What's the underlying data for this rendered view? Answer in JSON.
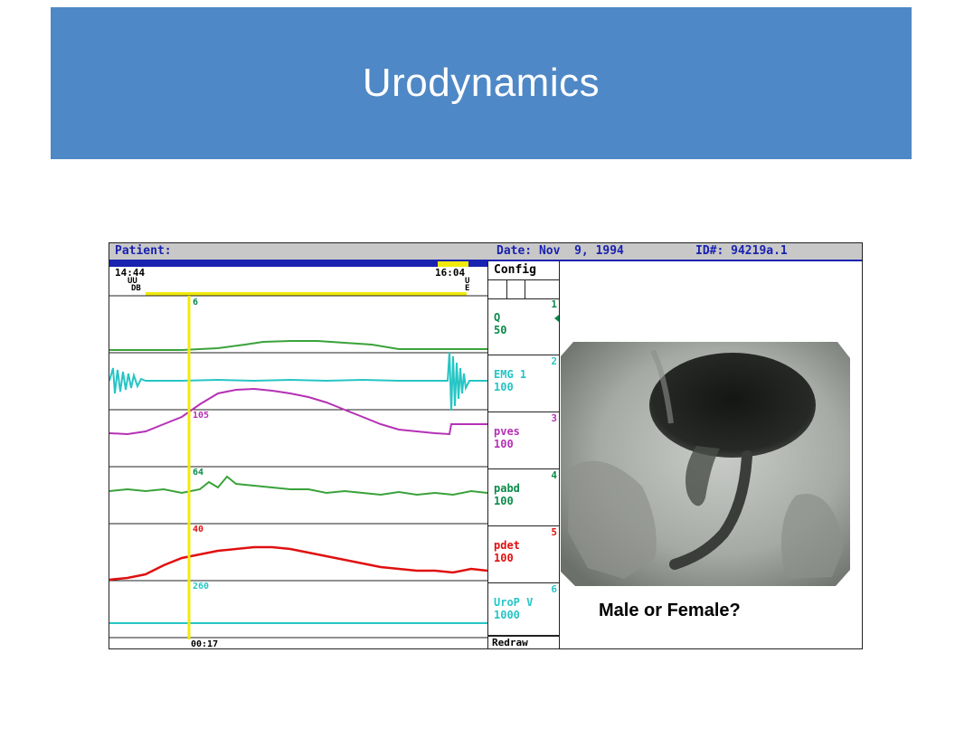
{
  "slide": {
    "title": "Urodynamics",
    "caption": "Male or Female?",
    "band_color": "#4f88c6"
  },
  "screen": {
    "header": {
      "patient_label": "Patient:",
      "date_label": "Date: Nov  9, 1994",
      "id_label": "ID#: 94219a.1"
    },
    "time_start": "14:44",
    "time_end": "16:04",
    "event_marks_left": "UU",
    "event_letters_left": "DB",
    "event_mark_right": "U",
    "event_letter_right": "E",
    "cursor_time": "00:17",
    "cursor_values": [
      "6",
      "105",
      "64",
      "40",
      "260"
    ],
    "config_label": "Config",
    "redraw_label": "Redraw",
    "channels": [
      {
        "num": "1",
        "name": "Q",
        "scale": "50",
        "color": "#0b8a4a"
      },
      {
        "num": "2",
        "name": "EMG 1",
        "scale": "100",
        "color": "#27c5c5"
      },
      {
        "num": "3",
        "name": "pves",
        "scale": "100",
        "color": "#b531b5"
      },
      {
        "num": "4",
        "name": "pabd",
        "scale": "100",
        "color": "#0b8a4a"
      },
      {
        "num": "5",
        "name": "pdet",
        "scale": "100",
        "color": "#e01010"
      },
      {
        "num": "6",
        "name": "UroP",
        "scale": "1000",
        "unit": "V",
        "color": "#27c5c5"
      }
    ]
  }
}
